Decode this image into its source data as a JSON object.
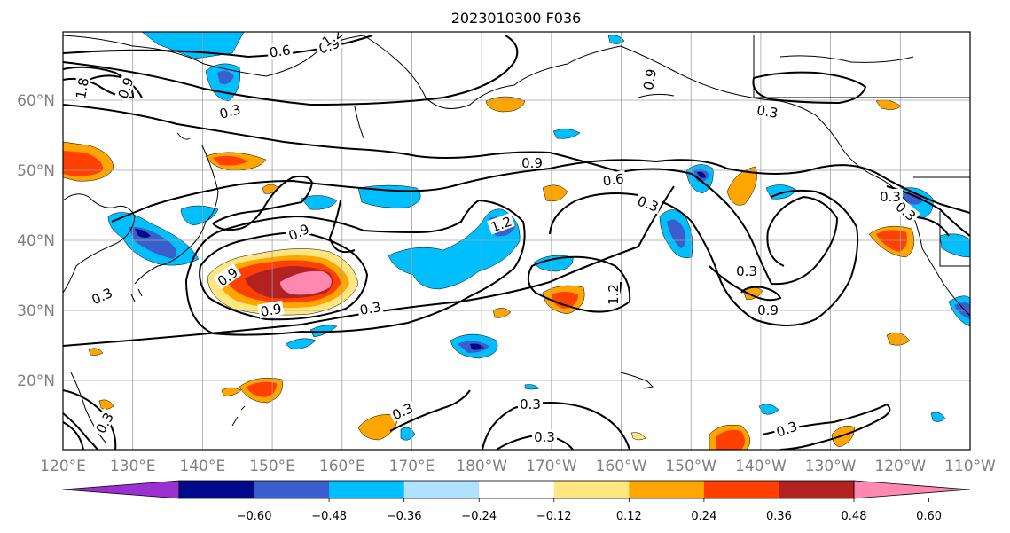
{
  "title": "2023010300 F036",
  "map": {
    "lon_labels": [
      "120°E",
      "130°E",
      "140°E",
      "150°E",
      "160°E",
      "170°E",
      "180°W",
      "170°W",
      "160°W",
      "150°W",
      "140°W",
      "130°W",
      "120°W",
      "110°W"
    ],
    "lat_labels": [
      "60°N",
      "50°N",
      "40°N",
      "30°N",
      "20°N"
    ]
  },
  "contour_labels": [
    "0.6",
    "0.9",
    "1.2",
    "0.9",
    "1.8",
    "0.3",
    "0.9",
    "0.3",
    "1.2",
    "0.9",
    "0.3",
    "0.6",
    "0.9",
    "0.9",
    "0.3",
    "0.9",
    "0.3",
    "0.3",
    "0.9",
    "1.2",
    "0.3",
    "0.3",
    "0.3",
    "0.3",
    "0.9",
    "0.3",
    "0.3",
    "0.3"
  ],
  "colorbar": {
    "ticks": [
      "−0.60",
      "−0.48",
      "−0.36",
      "−0.24",
      "−0.12",
      "0.12",
      "0.24",
      "0.36",
      "0.48",
      "0.60"
    ],
    "colors": [
      "#9b30d0",
      "#000a8a",
      "#3a5fcd",
      "#00bfff",
      "#b0e2ff",
      "#ffffff",
      "#ffe680",
      "#ffa500",
      "#ff4000",
      "#b22222",
      "#ff88b0"
    ]
  },
  "colors": {
    "neg_light": "#b0e2ff",
    "neg_mid": "#00bfff",
    "neg_strong": "#3a5fcd",
    "neg_max": "#000a8a",
    "pos_light": "#ffe680",
    "pos_mid": "#ffa500",
    "pos_strong": "#ff4000",
    "pos_max": "#b22222",
    "pos_extreme": "#ff88b0"
  }
}
